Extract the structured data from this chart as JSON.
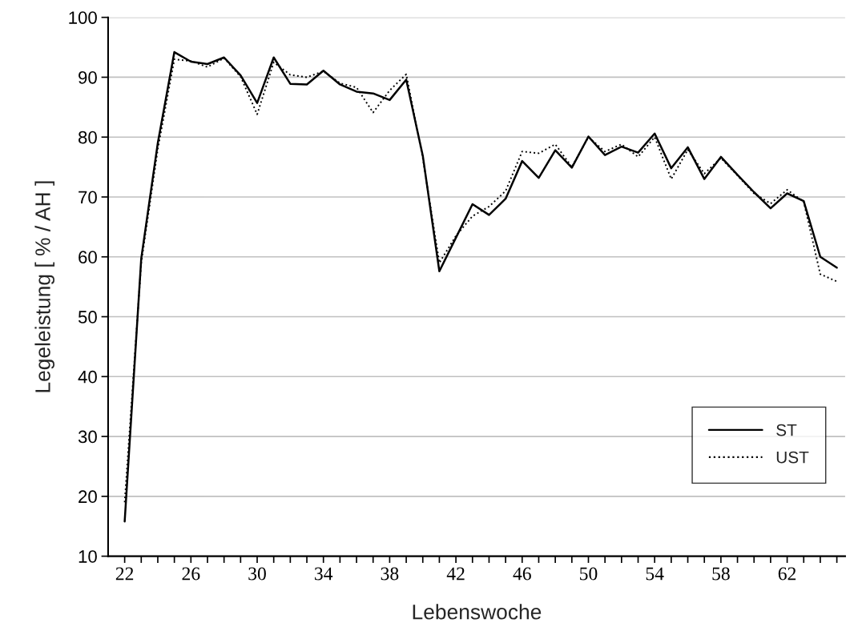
{
  "chart_data": {
    "type": "line",
    "xlabel": "Lebenswoche",
    "ylabel": "Legeleistung [ % / AH ]",
    "x": [
      22,
      23,
      24,
      25,
      26,
      27,
      28,
      29,
      30,
      31,
      32,
      33,
      34,
      35,
      36,
      37,
      38,
      39,
      40,
      41,
      42,
      43,
      44,
      45,
      46,
      47,
      48,
      49,
      50,
      51,
      52,
      53,
      54,
      55,
      56,
      57,
      58,
      59,
      60,
      61,
      62,
      63,
      64,
      65
    ],
    "series": [
      {
        "name": "ST",
        "color": "#000000",
        "line_style": "solid",
        "values": [
          15.8,
          59.7,
          79,
          94.2,
          92.6,
          92.2,
          93.3,
          90.3,
          85.7,
          93.3,
          88.9,
          88.8,
          91.1,
          88.8,
          87.6,
          87.3,
          86.2,
          89.6,
          76.9,
          57.6,
          63.2,
          68.8,
          67.0,
          69.7,
          76.0,
          73.2,
          77.8,
          74.9,
          80.1,
          77.0,
          78.4,
          77.4,
          80.6,
          74.8,
          78.3,
          73.0,
          76.7,
          73.7,
          70.8,
          68.1,
          70.6,
          69.3,
          60.0,
          58.2
        ]
      },
      {
        "name": "UST",
        "color": "#000000",
        "line_style": "dotted",
        "values": [
          19,
          59,
          78,
          93.0,
          92.7,
          91.7,
          93.2,
          90.1,
          83.8,
          92.5,
          90.4,
          90.0,
          91.0,
          89.0,
          88.3,
          84.1,
          87.8,
          90.5,
          76.5,
          59.0,
          63.5,
          66.8,
          68.4,
          71.0,
          77.6,
          77.3,
          78.8,
          75.0,
          80.0,
          77.6,
          78.8,
          76.7,
          80.0,
          73.0,
          77.9,
          73.9,
          76.5,
          73.6,
          70.6,
          68.9,
          71.2,
          69.2,
          57.1,
          55.9
        ]
      }
    ],
    "xlim": [
      21,
      65.5
    ],
    "xticks": [
      22,
      {
        "value": 23,
        "label": null
      },
      {
        "value": 24,
        "label": null
      },
      {
        "value": 25,
        "label": null
      },
      26,
      {
        "value": 27,
        "label": null
      },
      {
        "value": 28,
        "label": null
      },
      {
        "value": 29,
        "label": null
      },
      30,
      {
        "value": 31,
        "label": null
      },
      {
        "value": 32,
        "label": null
      },
      {
        "value": 33,
        "label": null
      },
      34,
      {
        "value": 35,
        "label": null
      },
      {
        "value": 36,
        "label": null
      },
      {
        "value": 37,
        "label": null
      },
      38,
      {
        "value": 39,
        "label": null
      },
      {
        "value": 40,
        "label": null
      },
      {
        "value": 41,
        "label": null
      },
      42,
      {
        "value": 43,
        "label": null
      },
      {
        "value": 44,
        "label": null
      },
      {
        "value": 45,
        "label": null
      },
      46,
      {
        "value": 47,
        "label": null
      },
      {
        "value": 48,
        "label": null
      },
      {
        "value": 49,
        "label": null
      },
      50,
      {
        "value": 51,
        "label": null
      },
      {
        "value": 52,
        "label": null
      },
      {
        "value": 53,
        "label": null
      },
      54,
      {
        "value": 55,
        "label": null
      },
      {
        "value": 56,
        "label": null
      },
      {
        "value": 57,
        "label": null
      },
      58,
      {
        "value": 59,
        "label": null
      },
      {
        "value": 60,
        "label": null
      },
      {
        "value": 61,
        "label": null
      },
      62,
      {
        "value": 63,
        "label": null
      },
      {
        "value": 64,
        "label": null
      },
      {
        "value": 65,
        "label": null
      }
    ],
    "ylim": [
      10,
      100
    ],
    "yticks": [
      10,
      20,
      30,
      40,
      50,
      60,
      70,
      80,
      90,
      100
    ],
    "grid": "y",
    "legend": "bottom right",
    "marker": "none"
  }
}
